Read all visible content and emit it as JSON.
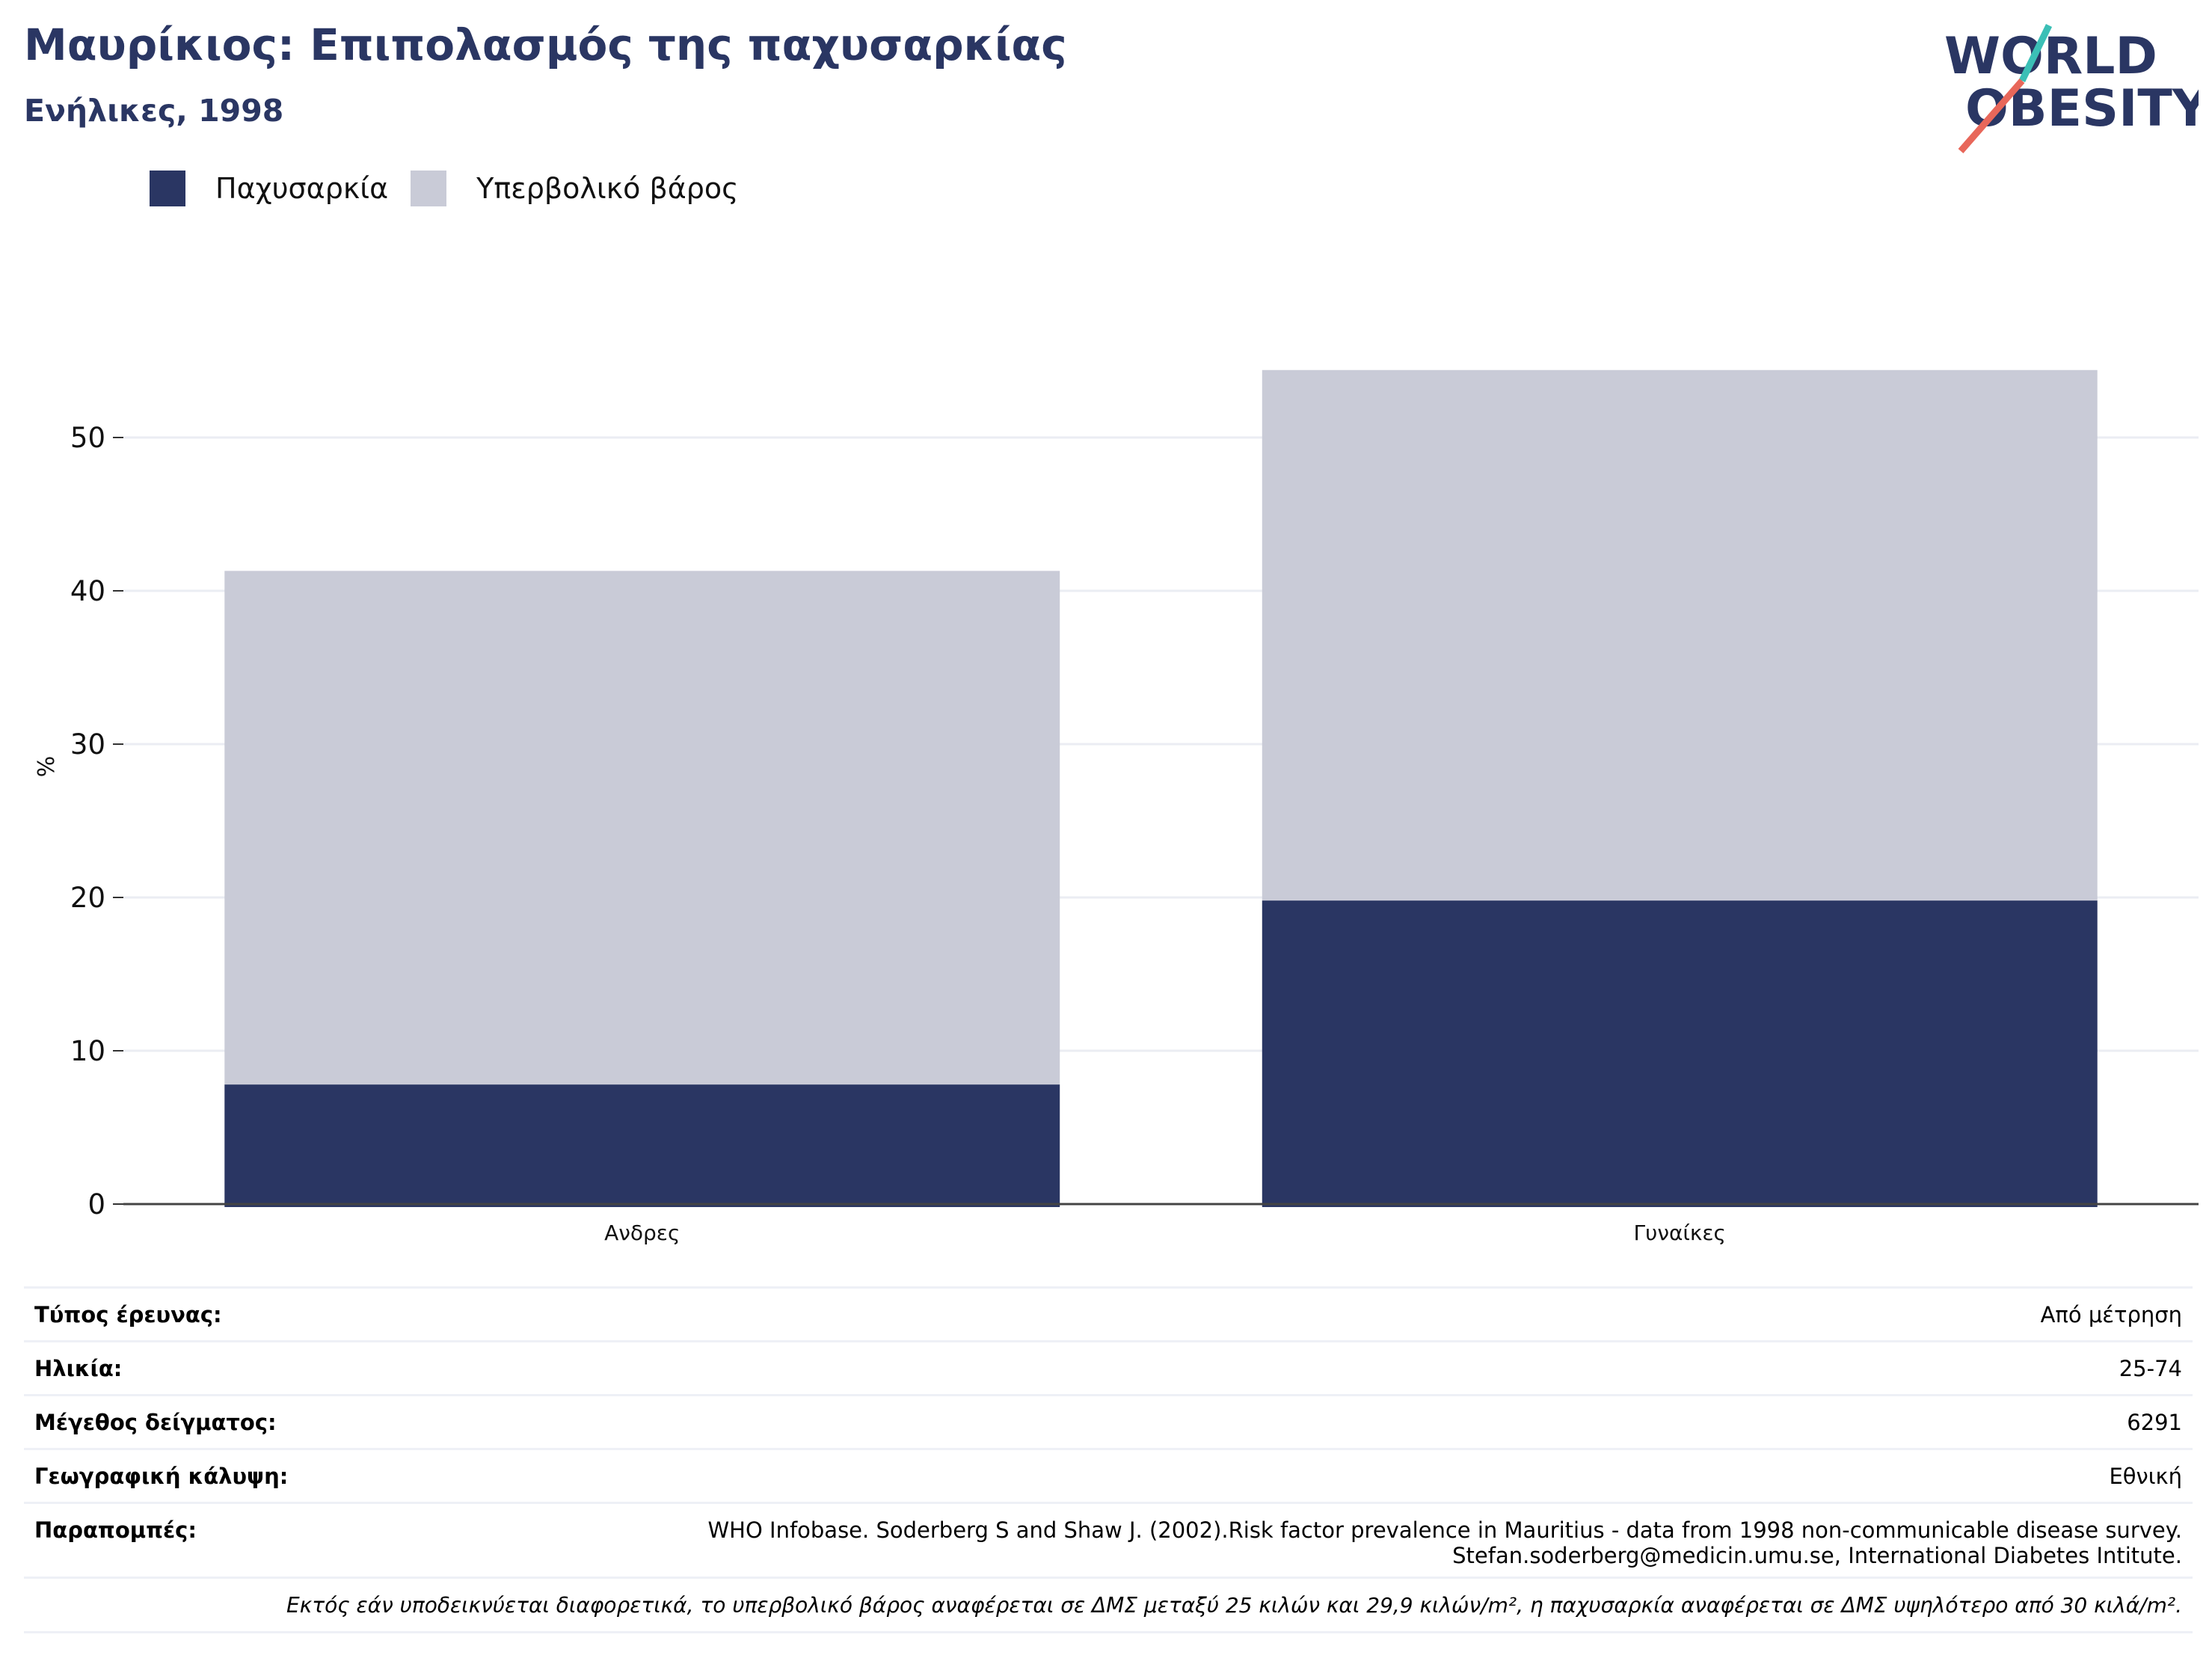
{
  "header": {
    "title": "Μαυρίκιος: Επιπολασμός της παχυσαρκίας",
    "subtitle": "Ενήλικες, 1998"
  },
  "logo": {
    "line1": "WORLD",
    "line2": "OBESITY",
    "colors": {
      "text": "#2a3663",
      "slash_top": "#3bbfb6",
      "slash_bottom": "#e8675a"
    }
  },
  "chart_data": {
    "type": "bar",
    "stacked": true,
    "categories": [
      "Ανδρες",
      "Γυναίκες"
    ],
    "series": [
      {
        "name": "Παχυσαρκία",
        "values": [
          7.8,
          19.8
        ],
        "color": "#2a3663"
      },
      {
        "name": "Υπερβολικό βάρος",
        "values": [
          33.5,
          34.6
        ],
        "color": "#c9cbd7"
      }
    ],
    "ylabel": "%",
    "xlabel": "",
    "ylim": [
      0,
      55
    ],
    "yticks": [
      0,
      10,
      20,
      30,
      40,
      50
    ],
    "grid": true,
    "legend": "top-left"
  },
  "info": {
    "survey_type": {
      "label": "Τύπος έρευνας:",
      "value": "Από μέτρηση"
    },
    "age": {
      "label": "Ηλικία:",
      "value": "25-74"
    },
    "sample_size": {
      "label": "Μέγεθος δείγματος:",
      "value": "6291"
    },
    "coverage": {
      "label": "Γεωγραφική κάλυψη:",
      "value": "Εθνική"
    },
    "references": {
      "label": "Παραπομπές:",
      "line1": "WHO Infobase. Soderberg S and Shaw J. (2002).Risk factor prevalence in Mauritius - data from 1998 non-communicable disease survey.",
      "line2": "Stefan.soderberg@medicin.umu.se, International Diabetes Intitute."
    },
    "note": "Εκτός εάν υποδεικνύεται διαφορετικά, το υπερβολικό βάρος αναφέρεται σε ΔΜΣ μεταξύ 25 κιλών και 29,9 κιλών/m², η παχυσαρκία αναφέρεται σε ΔΜΣ υψηλότερο από 30 κιλά/m²."
  }
}
